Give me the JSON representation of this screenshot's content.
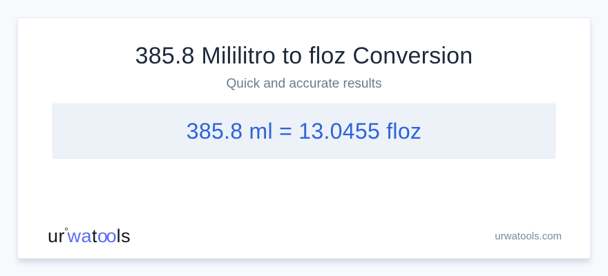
{
  "colors": {
    "page_background": "#f7f9fd",
    "card_background": "#ffffff",
    "card_border": "#e7ebf3",
    "title_text": "#1e2a3a",
    "subtitle_text": "#6b7a8d",
    "result_box_background": "#edf1f8",
    "result_text": "#2c64d9",
    "logo_dark": "#15171c",
    "logo_accent": "#5b6cf2",
    "domain_text": "#7d8a9c"
  },
  "header": {
    "title": "385.8 Mililitro to floz Conversion",
    "subtitle": "Quick and accurate results"
  },
  "result": {
    "text": "385.8 ml = 13.0455 floz",
    "value_ml": "385.8",
    "value_floz": "13.0455"
  },
  "footer": {
    "logo": {
      "part_ur": "ur",
      "degree_mark": "°",
      "part_wa": "wa",
      "part_t": "t",
      "part_oo": "oo",
      "part_ls": "ls"
    },
    "domain": "urwatools.com"
  }
}
